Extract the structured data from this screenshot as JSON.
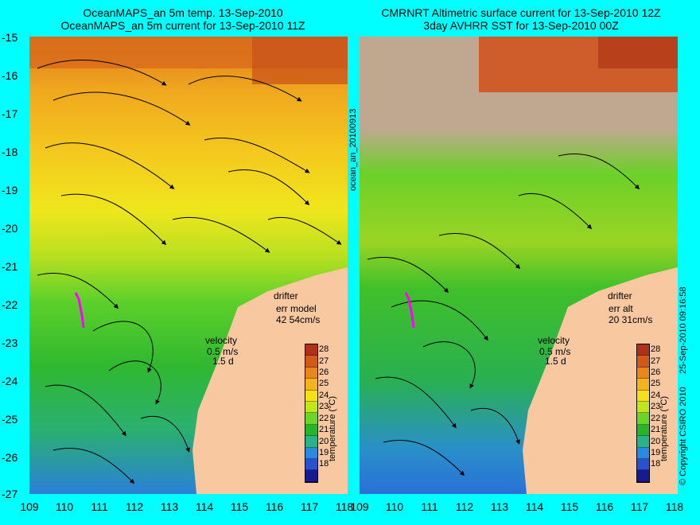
{
  "panel_left": {
    "title_line1": "OceanMAPS_an 5m temp. 13-Sep-2010",
    "title_line2": "OceanMAPS_an 5m current for 13-Sep-2010 11Z",
    "drifter_label": "drifter",
    "err_label": "err model",
    "err_value": "42 54cm/s"
  },
  "panel_right": {
    "title_line1": "CMRNRT Altimetric surface current for 13-Sep-2010 12Z",
    "title_line2": "3day AVHRR SST for 13-Sep-2010 00Z",
    "drifter_label": "drifter",
    "err_label": "err alt",
    "err_value": "20 31cm/s"
  },
  "velocity": {
    "label": "velocity",
    "speed": "0.5 m/s",
    "time": "1.5 d"
  },
  "side_label": "ocean_an_20100913",
  "copyright": "© Copyright CSIRO 2010",
  "timestamp": "25-Sep-2010 09:16:58",
  "colorbar": {
    "title": "temperature (°C)",
    "ticks": [
      "28",
      "27",
      "26",
      "25",
      "24",
      "23",
      "22",
      "21",
      "20",
      "19",
      "18"
    ],
    "colors": [
      "#b0301a",
      "#d05a1c",
      "#e8881c",
      "#f4b41e",
      "#f4e11c",
      "#c2e61e",
      "#6cd628",
      "#27b52a",
      "#2ab28a",
      "#2a8ae0",
      "#2a50d0",
      "#1a1a90"
    ]
  },
  "axes": {
    "lat_ticks": [
      "-15",
      "-16",
      "-17",
      "-18",
      "-19",
      "-20",
      "-21",
      "-22",
      "-23",
      "-24",
      "-25",
      "-26",
      "-27"
    ],
    "lon_ticks": [
      "109",
      "110",
      "111",
      "112",
      "113",
      "114",
      "115",
      "116",
      "117",
      "118"
    ]
  },
  "colors": {
    "background": "#00ffff",
    "land": "#f8c8a0",
    "cloud": "#c0a890",
    "drifter": "#ff00ff"
  }
}
